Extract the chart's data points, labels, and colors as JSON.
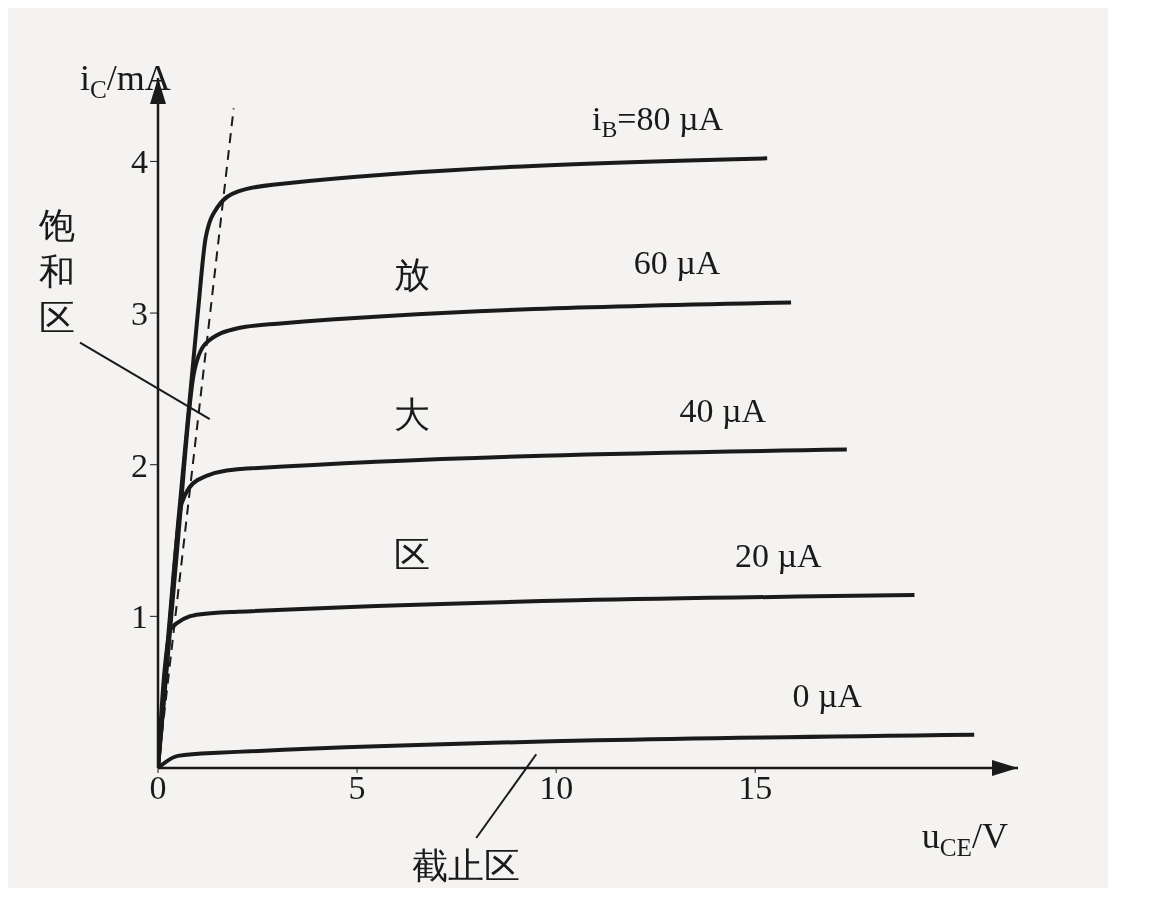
{
  "chart_data": {
    "type": "line",
    "xlabel": "u$_{CE}$/V",
    "ylabel": "i$_{C}$/mA",
    "xlim": [
      0,
      21.6
    ],
    "ylim": [
      0,
      4.55
    ],
    "xticks": [
      0,
      5,
      10,
      15
    ],
    "yticks": [
      1,
      2,
      3,
      4
    ],
    "grid": false,
    "marker": "none",
    "series": [
      {
        "name": "i$_{B}$=80 µA",
        "color": "#1a1a1a",
        "x": [
          0,
          0.5,
          1.0,
          1.2,
          1.5,
          2,
          3,
          15.3
        ],
        "values": [
          0,
          1.6,
          3.0,
          3.5,
          3.7,
          3.8,
          3.85,
          4.02
        ]
      },
      {
        "name": "60 µA",
        "color": "#1a1a1a",
        "x": [
          0,
          0.5,
          0.9,
          1.2,
          2,
          3,
          15.9
        ],
        "values": [
          0,
          1.5,
          2.6,
          2.8,
          2.9,
          2.93,
          3.07
        ]
      },
      {
        "name": "40 µA",
        "color": "#1a1a1a",
        "x": [
          0,
          0.3,
          0.6,
          1,
          2,
          17.3
        ],
        "values": [
          0,
          1.0,
          1.75,
          1.9,
          1.97,
          2.1
        ]
      },
      {
        "name": "20 µA",
        "color": "#1a1a1a",
        "x": [
          0,
          0.15,
          0.33,
          0.97,
          2,
          19.0
        ],
        "values": [
          0,
          0.6,
          0.92,
          1.01,
          1.03,
          1.14
        ]
      },
      {
        "name": "0 µA",
        "color": "#1a1a1a",
        "x": [
          0,
          0.5,
          1.5,
          20.5
        ],
        "values": [
          0,
          0.08,
          0.1,
          0.22
        ]
      },
      {
        "color": "#1a1a1a",
        "line_style": "dashed",
        "x": [
          0,
          1.9
        ],
        "values": [
          0,
          4.35
        ]
      }
    ],
    "annotations": [
      "放大区",
      "饱和区",
      {
        "text": "截止区",
        "x": 9.5,
        "y": 0.13
      }
    ]
  }
}
